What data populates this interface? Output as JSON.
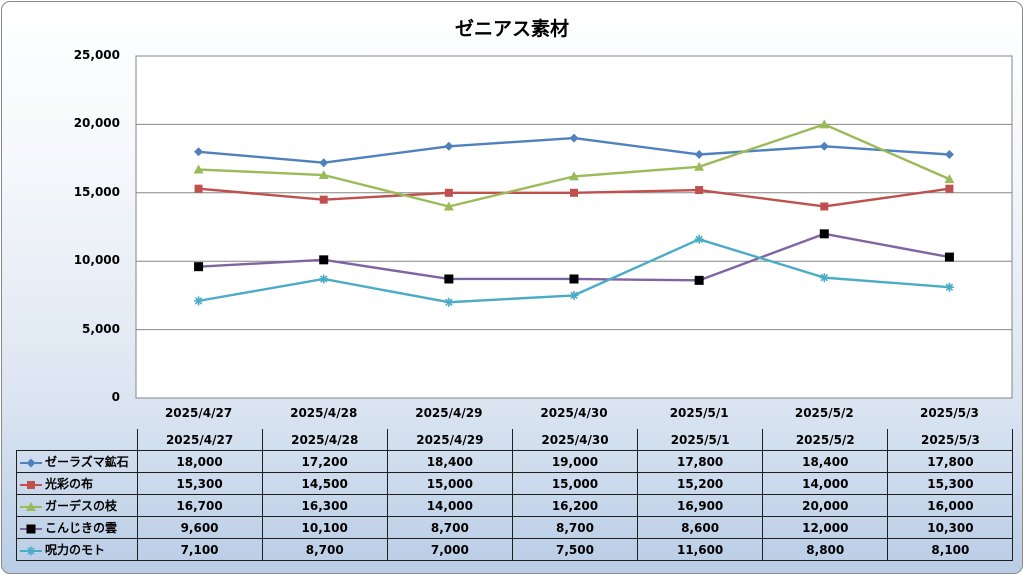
{
  "chart_data": {
    "type": "line",
    "title": "ゼニアス素材",
    "categories": [
      "2025/4/27",
      "2025/4/28",
      "2025/4/29",
      "2025/4/30",
      "2025/5/1",
      "2025/5/2",
      "2025/5/3"
    ],
    "ylim": [
      0,
      25000
    ],
    "yticks": [
      "25,000",
      "20,000",
      "15,000",
      "10,000",
      "5,000",
      "0"
    ],
    "grid": true,
    "legend": "data-table",
    "series": [
      {
        "name": "ゼーラズマ鉱石",
        "color": "#4f81bd",
        "marker": "diamond",
        "values": [
          18000,
          17200,
          18400,
          19000,
          17800,
          18400,
          17800
        ],
        "labels": [
          "18,000",
          "17,200",
          "18,400",
          "19,000",
          "17,800",
          "18,400",
          "17,800"
        ]
      },
      {
        "name": "光彩の布",
        "color": "#c0504d",
        "marker": "square",
        "values": [
          15300,
          14500,
          15000,
          15000,
          15200,
          14000,
          15300
        ],
        "labels": [
          "15,300",
          "14,500",
          "15,000",
          "15,000",
          "15,200",
          "14,000",
          "15,300"
        ]
      },
      {
        "name": "ガーデスの枝",
        "color": "#9bbb59",
        "marker": "triangle",
        "values": [
          16700,
          16300,
          14000,
          16200,
          16900,
          20000,
          16000
        ],
        "labels": [
          "16,700",
          "16,300",
          "14,000",
          "16,200",
          "16,900",
          "20,000",
          "16,000"
        ]
      },
      {
        "name": "こんじきの雲",
        "color": "#8064a2",
        "marker": "black-square",
        "values": [
          9600,
          10100,
          8700,
          8700,
          8600,
          12000,
          10300
        ],
        "labels": [
          "9,600",
          "10,100",
          "8,700",
          "8,700",
          "8,600",
          "12,000",
          "10,300"
        ]
      },
      {
        "name": "呪力のモト",
        "color": "#4bacc6",
        "marker": "star",
        "values": [
          7100,
          8700,
          7000,
          7500,
          11600,
          8800,
          8100
        ],
        "labels": [
          "7,100",
          "8,700",
          "7,000",
          "7,500",
          "11,600",
          "8,800",
          "8,100"
        ]
      }
    ]
  }
}
